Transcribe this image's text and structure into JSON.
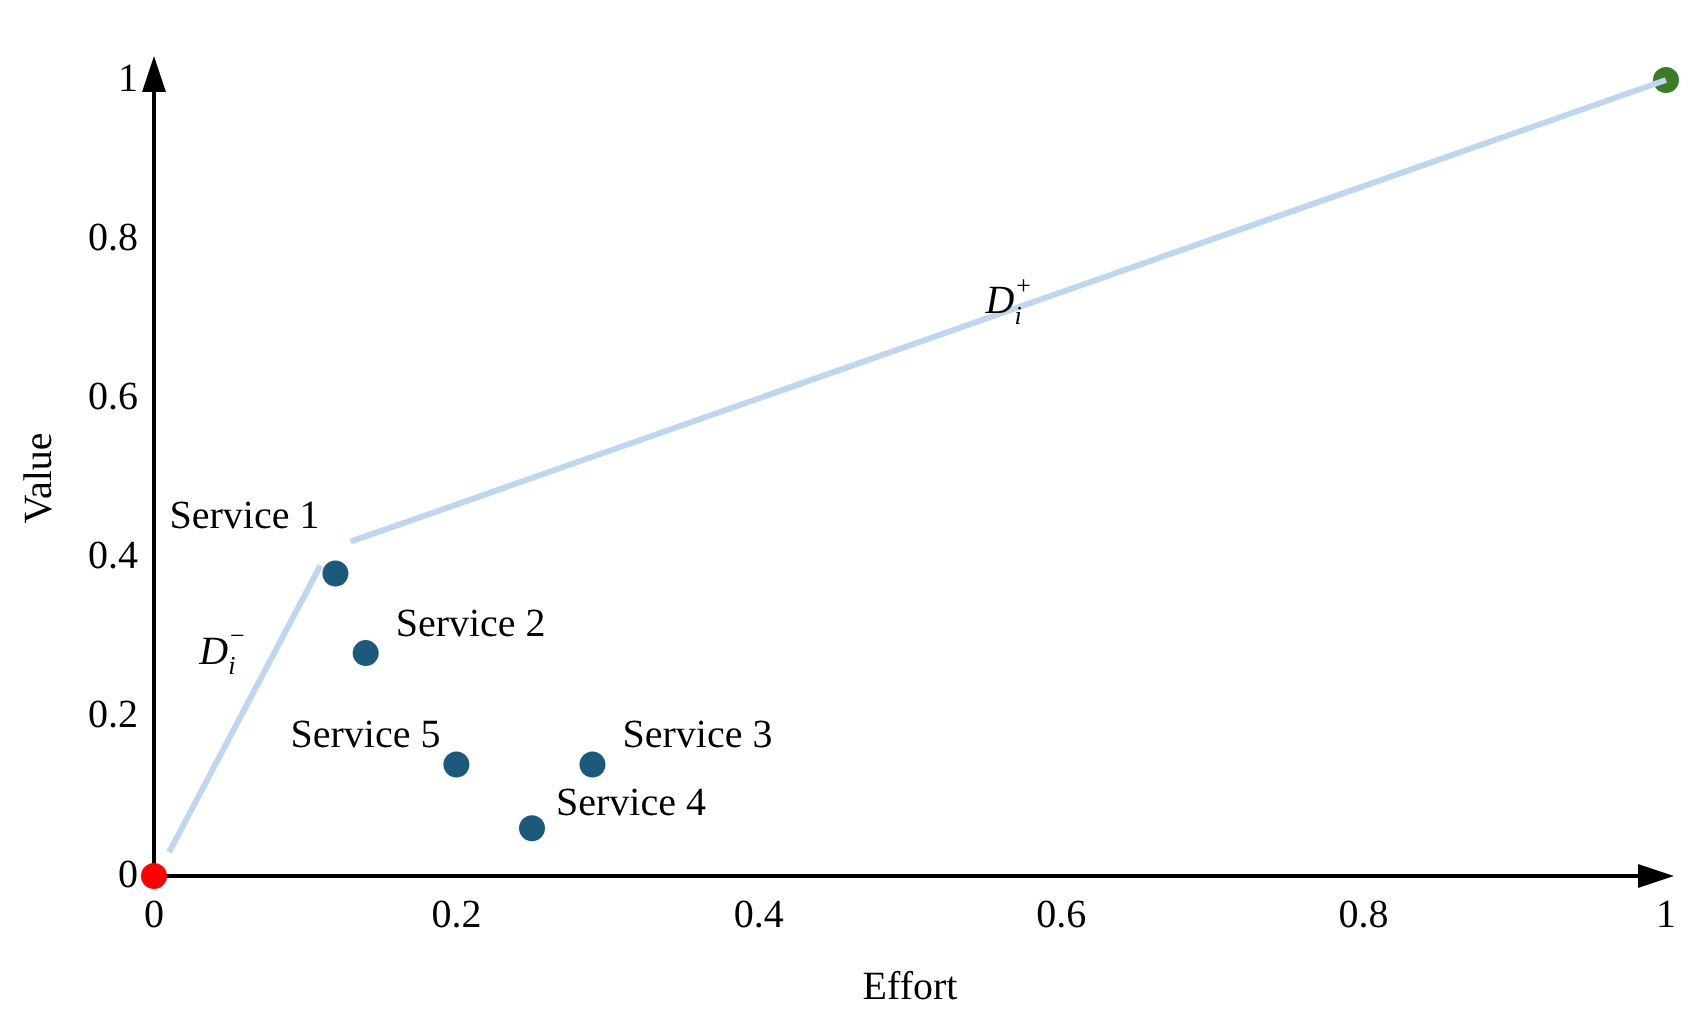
{
  "chart_data": {
    "type": "scatter",
    "xlabel": "Effort",
    "ylabel": "Value",
    "xlim": [
      0,
      1
    ],
    "ylim": [
      0,
      1
    ],
    "xticks": [
      0,
      0.2,
      0.4,
      0.6,
      0.8,
      1
    ],
    "yticks": [
      0,
      0.2,
      0.4,
      0.6,
      0.8,
      1
    ],
    "grid": false,
    "legend": false,
    "marker": "circle",
    "series": [
      {
        "type": "line",
        "color": "#bdd7ee",
        "marker": "none",
        "x": [
          0.01,
          0.11
        ],
        "values": [
          0.03,
          0.39
        ]
      },
      {
        "type": "line",
        "color": "#bdd7ee",
        "marker": "none",
        "x": [
          0.13,
          1
        ],
        "values": [
          0.42,
          1
        ]
      },
      {
        "type": "scatter",
        "color": "#1b5a7a",
        "x": [
          0.12,
          0.14,
          0.29,
          0.25,
          0.2
        ],
        "values": [
          0.38,
          0.28,
          0.14,
          0.06,
          0.14
        ]
      },
      {
        "type": "scatter",
        "color": "#ff0000",
        "x": [
          0
        ],
        "values": [
          0
        ]
      },
      {
        "type": "scatter",
        "color": "#3a7d22",
        "x": [
          1
        ],
        "values": [
          1
        ]
      }
    ],
    "annotations": [
      {
        "text": "Service 1",
        "x": 0.12,
        "y": 0.38
      },
      {
        "text": "Service 2",
        "x": 0.14,
        "y": 0.28
      },
      {
        "text": "Service 3",
        "x": 0.29,
        "y": 0.14
      },
      {
        "text": "Service 4",
        "x": 0.25,
        "y": 0.06
      },
      {
        "text": "Service 5",
        "x": 0.2,
        "y": 0.14
      },
      "D$_{i}$$^{−}$",
      "D$_{i}$$^{+}$"
    ]
  }
}
